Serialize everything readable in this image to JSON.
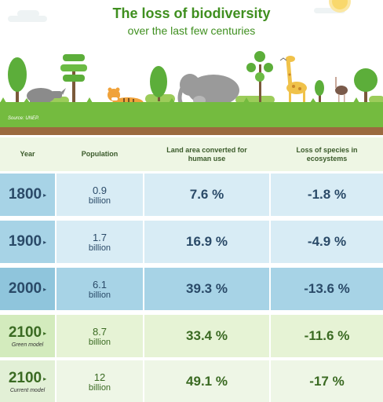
{
  "header": {
    "title": "The loss of biodiversity",
    "subtitle": "over the last few centuries",
    "source": "Source: UNEP."
  },
  "columns": {
    "year": "Year",
    "population": "Population",
    "land": "Land area converted for human use",
    "species": "Loss of species in ecosystems"
  },
  "rows": [
    {
      "year": "1800",
      "model": "",
      "population": "0.9",
      "unit": "billion",
      "land": "7.6 %",
      "species": "-1.8 %"
    },
    {
      "year": "1900",
      "model": "",
      "population": "1.7",
      "unit": "billion",
      "land": "16.9 %",
      "species": "-4.9 %"
    },
    {
      "year": "2000",
      "model": "",
      "population": "6.1",
      "unit": "billion",
      "land": "39.3 %",
      "species": "-13.6 %"
    },
    {
      "year": "2100",
      "model": "Green model",
      "population": "8.7",
      "unit": "billion",
      "land": "33.4 %",
      "species": "-11.6 %"
    },
    {
      "year": "2100",
      "model": "Current model",
      "population": "12",
      "unit": "billion",
      "land": "49.1 %",
      "species": "-17 %"
    }
  ],
  "colors": {
    "title_green": "#3f8f1f",
    "blue_text": "#2a4a68",
    "green_text": "#3a6a22",
    "row_blue_light": "#d8ecf5",
    "row_blue_dark": "#a7d3e6",
    "row_green": "#e6f3d5",
    "header_bg": "#eef6e4"
  }
}
